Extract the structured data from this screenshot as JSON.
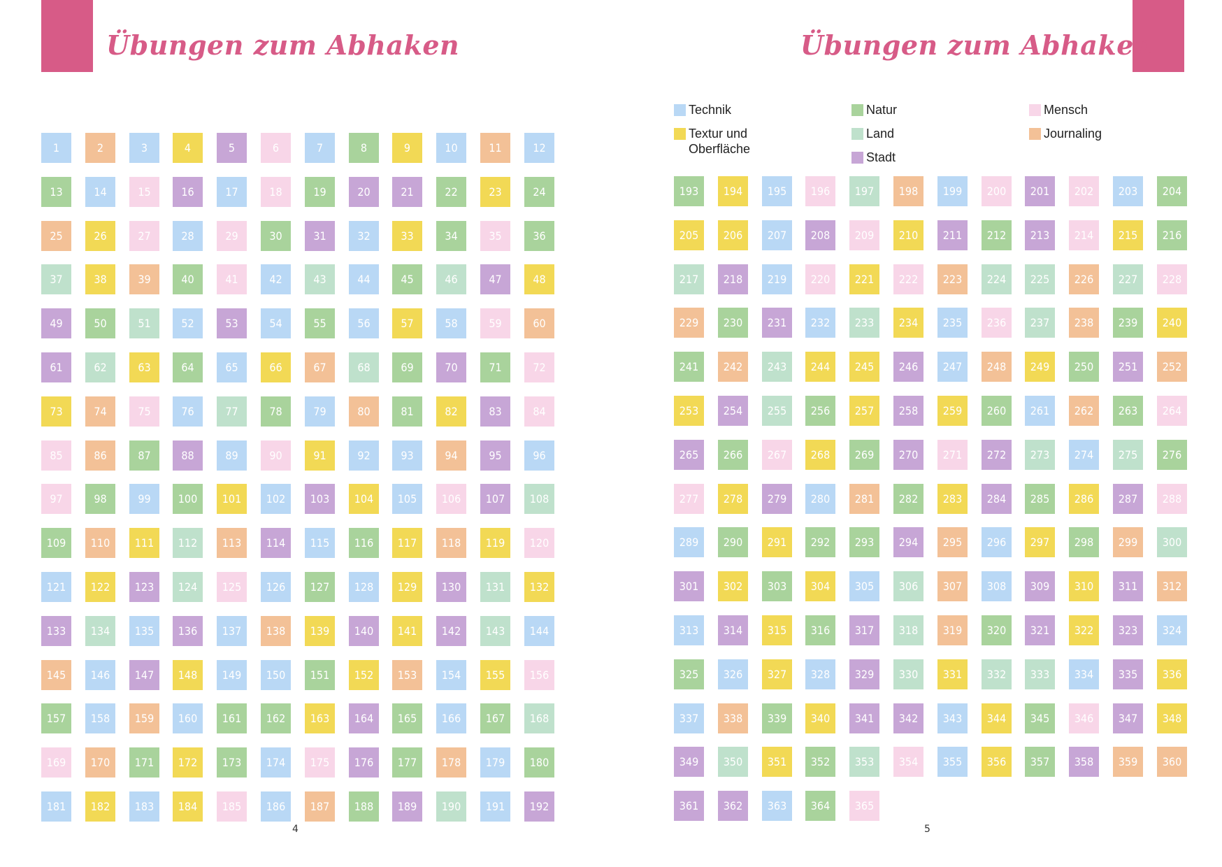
{
  "left_page": {
    "title": "Übungen zum Abhaken",
    "page_number": "4",
    "start": 1,
    "colors": "BOBYPpBGYBOBGBpPBpGPPGYGOYpBpGPBYGpGLYOGpBLBGLPYPGLBPBGBYBpOPLYGBYOLGPGpYOpBLGBOGYPpOGPBpYBBOPBpGBYpBBPYBpPLGOYLOPBGYOYpBYPLpBBGBYPLYPLBPBOBYPYPLBpOGPYBBGYOBYB",
    "colors_b": "GBOBGGYPGBGLpOGYGBYpPGOLBPGBBYYBpBBOGBYPBLBPLLpGGGBOBBYGGL",
    "colors_c": "BYBYBOGPPBYBYpBBYpB"
  },
  "right_page": {
    "title": "Übungen zum Abhaken",
    "page_number": "5",
    "start": 193,
    "legend": [
      {
        "label": "Technik",
        "color": "#b9d8f5"
      },
      {
        "label": "Natur",
        "color": "#a9d39c"
      },
      {
        "label": "Mensch",
        "color": "#f8d6e8"
      },
      {
        "label": "Textur und Oberfläche",
        "color": "#f2d955"
      },
      {
        "label": "Land",
        "color": "#bfe1cc"
      },
      {
        "label": "Journaling",
        "color": "#f3c197"
      },
      {
        "label": "Stadt",
        "color": "#c7a6d6"
      }
    ]
  },
  "palette": {
    "B": "#b9d8f5",
    "G": "#a9d39c",
    "p": "#f8d6e8",
    "Y": "#f2d955",
    "L": "#bfe1cc",
    "O": "#f3c197",
    "P": "#c7a6d6"
  },
  "colors_left": [
    "BOBYPpBGYBOB",
    "GBpPBpGPPGYG",
    "OYpBpGPBYGpG",
    "LYOGpBLBGLPY",
    "PGLBPBGBYBpO",
    "PLYGBYOLGPGp",
    "YOpBLGBOGYPp",
    "pOGPBpYBBOPB",
    "pGBGYBPYBpPL",
    "GOYLOPBGYOYp",
    "BYPLpBGBYPLY",
    "PLBPBOYPYPLB",
    "OBPYBBGYOBYp",
    "GBOBGGYPGBGL",
    "pOGYGBpPGOBG",
    "BYBYpBOGPLBP"
  ],
  "colors_right": [
    "GYBpLOBpPpBG",
    "YYBPpYPGPpYG",
    "LPBpYpOLLOLp",
    "OGPBLYBpLOGY",
    "GOLYYPBOYGPO",
    "YPLGYPYGBOGp",
    "PGpYGPpPLBLG",
    "pYPBOGYPGYPp",
    "BGYGGPOBYGOL",
    "PYGYBLOBPYPO",
    "BPYGPLOGPYPB",
    "GBYBPLYLLBPY",
    "BOGYPPBYGpPY",
    "PLYGLpBYGPOO",
    "PPBGp"
  ]
}
